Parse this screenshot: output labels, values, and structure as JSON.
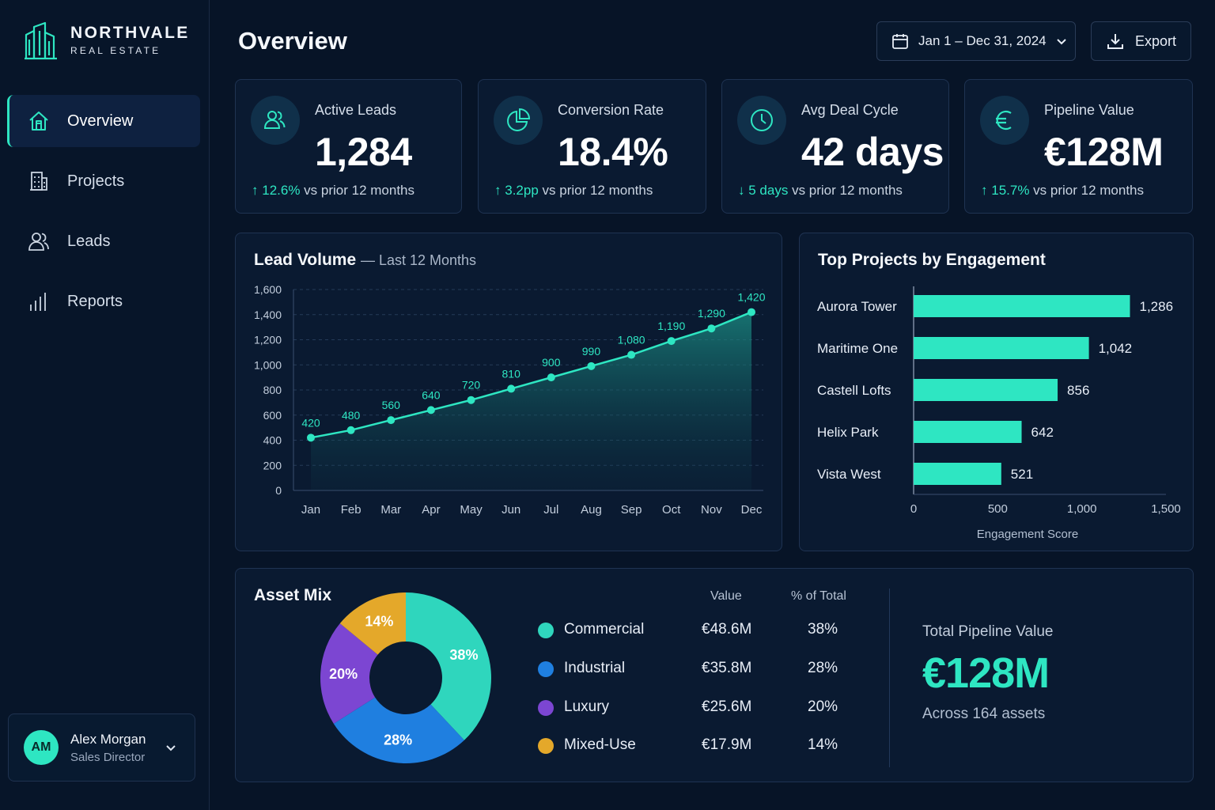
{
  "brand": {
    "name": "NORTHVALE",
    "subtitle": "REAL ESTATE"
  },
  "nav": [
    {
      "label": "Overview",
      "icon": "home-icon",
      "active": true
    },
    {
      "label": "Projects",
      "icon": "building-icon",
      "active": false
    },
    {
      "label": "Leads",
      "icon": "users-icon",
      "active": false
    },
    {
      "label": "Reports",
      "icon": "bar-chart-icon",
      "active": false
    }
  ],
  "user": {
    "initials": "AM",
    "name": "Alex Morgan",
    "role": "Sales Director"
  },
  "header": {
    "title": "Overview",
    "date_range": "Jan 1 – Dec 31, 2024",
    "export_label": "Export"
  },
  "kpis": [
    {
      "label": "Active Leads",
      "value": "1,284",
      "arrow": "↑",
      "delta": "12.6%",
      "delta_text": "vs prior 12 months",
      "icon": "users-icon"
    },
    {
      "label": "Conversion Rate",
      "value": "18.4%",
      "arrow": "↑",
      "delta": "3.2pp",
      "delta_text": "vs prior 12 months",
      "icon": "pie-icon"
    },
    {
      "label": "Avg Deal Cycle",
      "value": "42 days",
      "arrow": "↓",
      "delta": "5 days",
      "delta_text": "vs prior 12 months",
      "icon": "clock-icon"
    },
    {
      "label": "Pipeline Value",
      "value": "€128M",
      "arrow": "↑",
      "delta": "15.7%",
      "delta_text": "vs prior 12 months",
      "icon": "euro-icon"
    }
  ],
  "lead_volume": {
    "title": "Lead Volume",
    "subtitle": "— Last 12 Months"
  },
  "top_projects": {
    "title": "Top Projects by Engagement"
  },
  "asset_mix": {
    "title": "Asset Mix",
    "col_value": "Value",
    "col_pct": "% of Total",
    "rows": [
      {
        "name": "Commercial",
        "value": "€48.6M",
        "pct": "38%",
        "color": "#2fd6bd"
      },
      {
        "name": "Industrial",
        "value": "€35.8M",
        "pct": "28%",
        "color": "#1f7fe0"
      },
      {
        "name": "Luxury",
        "value": "€25.6M",
        "pct": "20%",
        "color": "#7c46d2"
      },
      {
        "name": "Mixed-Use",
        "value": "€17.9M",
        "pct": "14%",
        "color": "#e4a82a"
      }
    ],
    "total_label": "Total Pipeline Value",
    "total_value": "€128M",
    "total_sub": "Across 164 assets"
  },
  "chart_data": [
    {
      "type": "area",
      "title": "Lead Volume",
      "subtitle": "— Last 12 Months",
      "categories": [
        "Jan",
        "Feb",
        "Mar",
        "Apr",
        "May",
        "Jun",
        "Jul",
        "Aug",
        "Sep",
        "Oct",
        "Nov",
        "Dec"
      ],
      "values": [
        420,
        480,
        560,
        640,
        720,
        810,
        900,
        990,
        1080,
        1190,
        1290,
        1420
      ],
      "data_labels": [
        "420",
        "480",
        "560",
        "640",
        "720",
        "810",
        "900",
        "990",
        "1,080",
        "1,190",
        "1,290",
        "1,420"
      ],
      "ylim": [
        0,
        1600
      ],
      "yticks": [
        0,
        200,
        400,
        600,
        800,
        1000,
        1200,
        1400,
        1600
      ],
      "ytick_labels": [
        "0",
        "200",
        "400",
        "600",
        "800",
        "1,000",
        "1,200",
        "1,400",
        "1,600"
      ],
      "grid": true,
      "color": "#2ee6c2"
    },
    {
      "type": "bar",
      "orientation": "horizontal",
      "title": "Top Projects by Engagement",
      "categories": [
        "Aurora Tower",
        "Maritime One",
        "Castell Lofts",
        "Helix Park",
        "Vista West"
      ],
      "values": [
        1286,
        1042,
        856,
        642,
        521
      ],
      "data_labels": [
        "1,286",
        "1,042",
        "856",
        "642",
        "521"
      ],
      "xlabel": "Engagement Score",
      "xlim": [
        0,
        1500
      ],
      "xticks": [
        0,
        500,
        1000,
        1500
      ],
      "xtick_labels": [
        "0",
        "500",
        "1,000",
        "1,500"
      ],
      "color": "#2ee6c2"
    },
    {
      "type": "pie",
      "donut": true,
      "title": "Asset Mix",
      "categories": [
        "Commercial",
        "Industrial",
        "Luxury",
        "Mixed-Use"
      ],
      "values": [
        38,
        28,
        20,
        14
      ],
      "data_labels": [
        "38%",
        "28%",
        "20%",
        "14%"
      ],
      "colors": [
        "#2fd6bd",
        "#1f7fe0",
        "#7c46d2",
        "#e4a82a"
      ]
    }
  ]
}
